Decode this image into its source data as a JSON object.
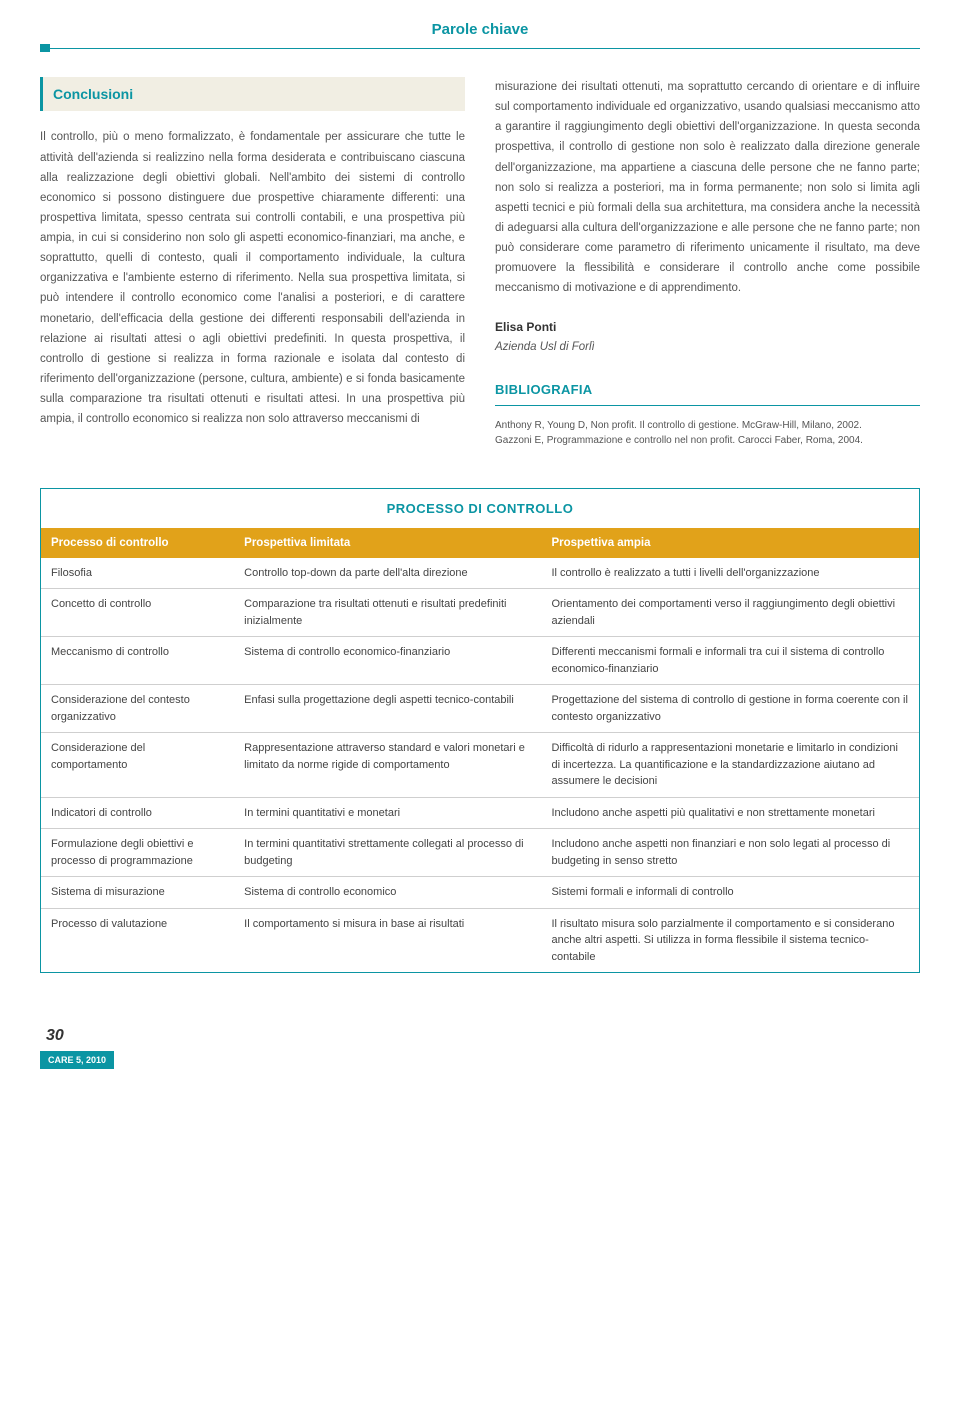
{
  "header": {
    "title": "Parole chiave"
  },
  "conclusioni": {
    "heading": "Conclusioni",
    "left": "Il controllo, più o meno formalizzato, è fondamentale per assicurare che tutte le attività dell'azienda si realizzino nella forma desiderata e contribuiscano ciascuna alla realizzazione degli obiettivi globali. Nell'ambito dei sistemi di controllo economico si possono distinguere due prospettive chiaramente differenti: una prospettiva limitata, spesso centrata sui controlli contabili, e una prospettiva più ampia, in cui si considerino non solo gli aspetti economico-finanziari, ma anche, e soprattutto, quelli di contesto, quali il comportamento individuale, la cultura organizzativa e l'ambiente esterno di riferimento. Nella sua prospettiva limitata, si può intendere il controllo economico come l'analisi a posteriori, e di carattere monetario, dell'efficacia della gestione dei differenti responsabili dell'azienda in relazione ai risultati attesi o agli obiettivi predefiniti. In questa prospettiva, il controllo di gestione si realizza in forma razionale e isolata dal contesto di riferimento dell'organizzazione (persone, cultura, ambiente) e si fonda basicamente sulla comparazione tra risultati ottenuti e risultati attesi. In una prospettiva più ampia, il controllo economico si realizza non solo attraverso meccanismi di",
    "right": "misurazione dei risultati ottenuti, ma soprattutto cercando di orientare e di influire sul comportamento individuale ed organizzativo, usando qualsiasi meccanismo atto a garantire il raggiungimento degli obiettivi dell'organizzazione. In questa seconda prospettiva, il controllo di gestione non solo è realizzato dalla direzione generale dell'organizzazione, ma appartiene a ciascuna delle persone che ne fanno parte; non solo si realizza a posteriori, ma in forma permanente; non solo si limita agli aspetti tecnici e più formali della sua architettura, ma considera anche la necessità di adeguarsi alla cultura dell'organizzazione e alle persone che ne fanno parte; non può considerare come parametro di riferimento unicamente il risultato, ma deve promuovere la flessibilità e considerare il controllo anche come possibile meccanismo di motivazione e di apprendimento."
  },
  "author": {
    "name": "Elisa Ponti",
    "affiliation": "Azienda Usl di Forlì"
  },
  "bibliografia": {
    "heading": "BIBLIOGRAFIA",
    "entries": [
      "Anthony R, Young D, Non profit. Il controllo di gestione. McGraw-Hill, Milano, 2002.",
      "Gazzoni E, Programmazione e controllo nel non profit. Carocci Faber, Roma, 2004."
    ]
  },
  "table": {
    "title": "PROCESSO DI CONTROLLO",
    "columns": [
      "Processo di controllo",
      "Prospettiva limitata",
      "Prospettiva ampia"
    ],
    "rows": [
      [
        "Filosofia",
        "Controllo top-down da parte dell'alta direzione",
        "Il controllo è realizzato a tutti i livelli dell'organizzazione"
      ],
      [
        "Concetto di controllo",
        "Comparazione tra risultati ottenuti e risultati predefiniti inizialmente",
        "Orientamento dei comportamenti verso il raggiungimento degli obiettivi aziendali"
      ],
      [
        "Meccanismo di controllo",
        "Sistema di controllo economico-finanziario",
        "Differenti meccanismi formali e informali tra cui il sistema di controllo economico-finanziario"
      ],
      [
        "Considerazione del contesto organizzativo",
        "Enfasi sulla progettazione degli aspetti tecnico-contabili",
        "Progettazione del sistema di controllo di gestione in forma coerente con il contesto organizzativo"
      ],
      [
        "Considerazione del comportamento",
        "Rappresentazione attraverso standard e valori monetari e limitato da norme rigide di comportamento",
        "Difficoltà di ridurlo a rappresentazioni monetarie e limitarlo in condizioni di incertezza. La quantificazione e la standardizzazione aiutano ad assumere le decisioni"
      ],
      [
        "Indicatori di controllo",
        "In termini quantitativi e monetari",
        "Includono anche aspetti più qualitativi e non strettamente monetari"
      ],
      [
        "Formulazione degli obiettivi e processo di programmazione",
        "In termini quantitativi strettamente collegati al processo di budgeting",
        "Includono anche aspetti non finanziari e non solo legati al processo di budgeting in senso stretto"
      ],
      [
        "Sistema di misurazione",
        "Sistema di controllo economico",
        "Sistemi formali e informali di controllo"
      ],
      [
        "Processo di valutazione",
        "Il comportamento si misura in base ai risultati",
        "Il risultato misura solo parzialmente il comportamento e si considerano anche altri aspetti. Si utilizza in forma flessibile il sistema tecnico-contabile"
      ]
    ]
  },
  "footer": {
    "page": "30",
    "issue": "CARE 5, 2010"
  },
  "colors": {
    "teal": "#0b95a3",
    "gold": "#e1a21a",
    "cream": "#f1eee3",
    "text": "#555555",
    "rule": "#cfcfcf"
  }
}
